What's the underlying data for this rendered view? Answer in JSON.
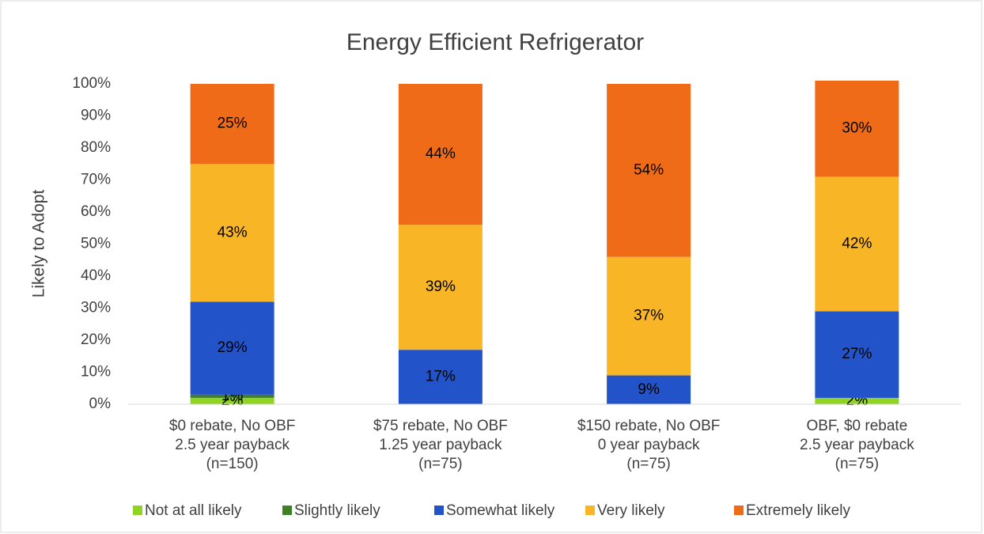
{
  "chart_data": {
    "type": "stacked_bar",
    "title": "Energy Efficient Refrigerator",
    "y_label": "Likely to Adopt",
    "categories": [
      [
        "$0 rebate, No OBF",
        "2.5 year payback",
        "(n=150)"
      ],
      [
        "$75 rebate, No OBF",
        "1.25 year payback",
        "(n=75)"
      ],
      [
        "$150 rebate, No OBF",
        "0 year payback",
        "(n=75)"
      ],
      [
        "OBF, $0 rebate",
        "2.5 year payback",
        "(n=75)"
      ]
    ],
    "series": [
      {
        "name": "Not at all likely",
        "color": "#8fd422",
        "values": [
          2,
          0,
          0,
          2
        ],
        "value_labels": [
          "2%",
          null,
          null,
          "2%"
        ]
      },
      {
        "name": "Slightly likely",
        "color": "#3f7f26",
        "values": [
          1,
          0,
          0,
          0
        ],
        "value_labels": [
          "1%",
          null,
          null,
          null
        ]
      },
      {
        "name": "Somewhat likely",
        "color": "#2353c9",
        "values": [
          29,
          17,
          9,
          27
        ],
        "value_labels": [
          "29%",
          "17%",
          "9%",
          "27%"
        ]
      },
      {
        "name": "Very likely",
        "color": "#f8b526",
        "values": [
          43,
          39,
          37,
          42
        ],
        "value_labels": [
          "43%",
          "39%",
          "37%",
          "42%"
        ]
      },
      {
        "name": "Extremely likely",
        "color": "#f06b17",
        "values": [
          25,
          44,
          54,
          30
        ],
        "value_labels": [
          "25%",
          "44%",
          "54%",
          "30%"
        ]
      }
    ],
    "ylim": [
      0,
      100
    ],
    "yticks": [
      {
        "value": 0,
        "label": "0%"
      },
      {
        "value": 10,
        "label": "10%"
      },
      {
        "value": 20,
        "label": "20%"
      },
      {
        "value": 30,
        "label": "30%"
      },
      {
        "value": 40,
        "label": "40%"
      },
      {
        "value": 50,
        "label": "50%"
      },
      {
        "value": 60,
        "label": "60%"
      },
      {
        "value": 70,
        "label": "70%"
      },
      {
        "value": 80,
        "label": "80%"
      },
      {
        "value": 90,
        "label": "90%"
      },
      {
        "value": 100,
        "label": "100%"
      }
    ],
    "grid": false,
    "legend": "bottom"
  }
}
